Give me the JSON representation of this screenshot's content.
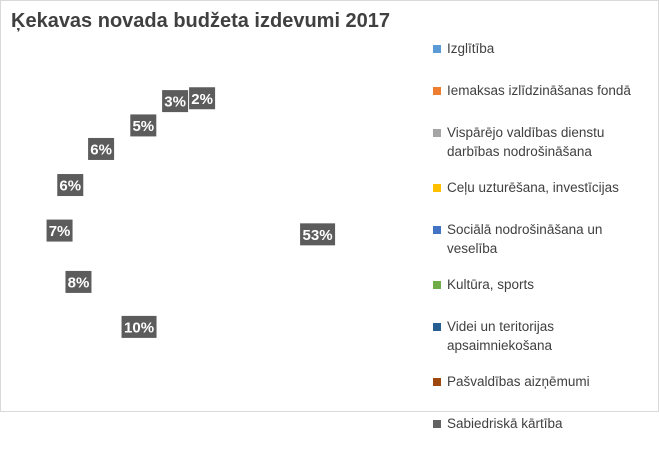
{
  "chart_data": {
    "type": "pie",
    "title": "Ķekavas novada budžeta izdevumi 2017",
    "legend_position": "right",
    "style": "3d",
    "slices": [
      {
        "name": "Izglītība",
        "value": 53,
        "label": "53%",
        "color": "#5b9bd5"
      },
      {
        "name": "Iemaksas izlīdzināšanas fondā",
        "value": 10,
        "label": "10%",
        "color": "#ed7d31"
      },
      {
        "name": "Vispārējo valdības dienstu darbības nodrošināšana",
        "value": 8,
        "label": "8%",
        "color": "#a5a5a5"
      },
      {
        "name": "Ceļu uzturēšana, investīcijas",
        "value": 7,
        "label": "7%",
        "color": "#ffc000"
      },
      {
        "name": "Sociālā nodrošināšana un veselība",
        "value": 6,
        "label": "6%",
        "color": "#4472c4"
      },
      {
        "name": "Kultūra, sports",
        "value": 6,
        "label": "6%",
        "color": "#70ad47"
      },
      {
        "name": "Videi un teritorijas apsaimniekošana",
        "value": 5,
        "label": "5%",
        "color": "#255e91"
      },
      {
        "name": "Pašvaldības aizņēmumi",
        "value": 3,
        "label": "3%",
        "color": "#9e480e"
      },
      {
        "name": "Sabiedriskā kārtība",
        "value": 2,
        "label": "2%",
        "color": "#636363"
      }
    ]
  }
}
